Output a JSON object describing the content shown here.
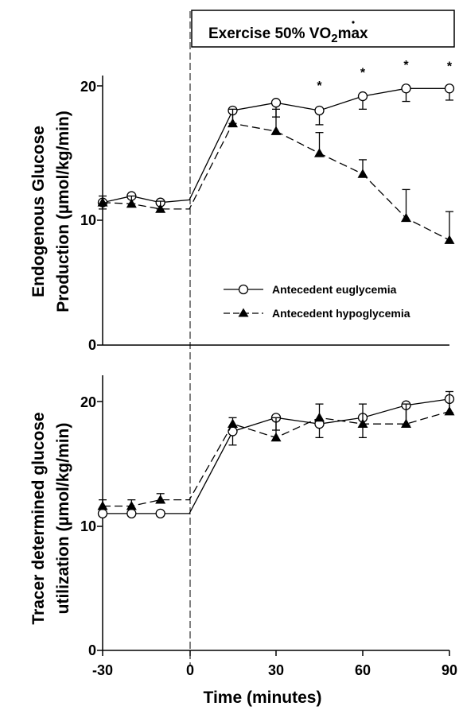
{
  "banner": {
    "prefix": "Exercise 50% ",
    "v": "V",
    "o2_O": "O",
    "o2_sub": "2",
    "suffix": "max"
  },
  "x_axis": {
    "title": "Time (minutes)",
    "ticks": [
      "-30",
      "0",
      "30",
      "60",
      "90"
    ]
  },
  "legend": {
    "eu_label": "Antecedent euglycemia",
    "hypo_label": "Antecedent hypoglycemia"
  },
  "chart_data": [
    {
      "type": "line",
      "ylabel_line1": "Endogenous Glucose",
      "ylabel_line2": "Production (µmol/kg/min)",
      "xlim": [
        -30,
        90
      ],
      "ylim": [
        0,
        21
      ],
      "yticks": [
        "0",
        "10",
        "20"
      ],
      "significance_marker": "*",
      "significance_x": [
        45,
        60,
        75,
        90
      ],
      "series": [
        {
          "name": "Antecedent euglycemia",
          "marker": "open-circle",
          "line": "solid",
          "x": [
            -30,
            -20,
            -10,
            0,
            15,
            30,
            45,
            60,
            75,
            90
          ],
          "y": [
            11.0,
            11.5,
            11.0,
            11.2,
            18.1,
            18.7,
            18.1,
            19.2,
            19.8,
            19.8
          ],
          "error": [
            0.5,
            0.6,
            0.5,
            0,
            1.0,
            1.1,
            1.1,
            1.0,
            1.0,
            0.9
          ]
        },
        {
          "name": "Antecedent hypoglycemia",
          "marker": "filled-triangle",
          "line": "dashed",
          "x": [
            -30,
            -20,
            -10,
            0,
            15,
            30,
            45,
            60,
            75,
            90
          ],
          "y": [
            11.0,
            10.9,
            10.5,
            10.5,
            17.1,
            16.5,
            14.8,
            13.2,
            9.8,
            8.1
          ],
          "error": [
            0.5,
            0.6,
            0.6,
            0,
            1.1,
            1.7,
            1.6,
            1.1,
            2.2,
            2.2
          ]
        }
      ]
    },
    {
      "type": "line",
      "ylabel_line1": "Tracer determined glucose",
      "ylabel_line2": "utilization (µmol/kg/min)",
      "xlim": [
        -30,
        90
      ],
      "ylim": [
        0,
        22
      ],
      "yticks": [
        "0",
        "10",
        "20"
      ],
      "series": [
        {
          "name": "Antecedent euglycemia",
          "marker": "open-circle",
          "line": "solid",
          "x": [
            -30,
            -20,
            -10,
            0,
            15,
            30,
            45,
            60,
            75,
            90
          ],
          "y": [
            11.0,
            11.0,
            11.0,
            11.0,
            17.6,
            18.7,
            18.2,
            18.7,
            19.7,
            20.2
          ],
          "error": [
            0,
            0,
            0,
            0,
            1.1,
            1.0,
            1.1,
            1.6,
            1.6,
            1.1
          ]
        },
        {
          "name": "Antecedent hypoglycemia",
          "marker": "filled-triangle",
          "line": "dashed",
          "x": [
            -30,
            -20,
            -10,
            0,
            15,
            30,
            45,
            60,
            75,
            90
          ],
          "y": [
            11.6,
            11.6,
            12.1,
            12.1,
            18.2,
            17.1,
            18.7,
            18.2,
            18.2,
            19.2
          ],
          "error": [
            0.5,
            0.5,
            0.5,
            0,
            0.5,
            1.6,
            1.1,
            1.6,
            1.6,
            1.6
          ]
        }
      ]
    }
  ]
}
